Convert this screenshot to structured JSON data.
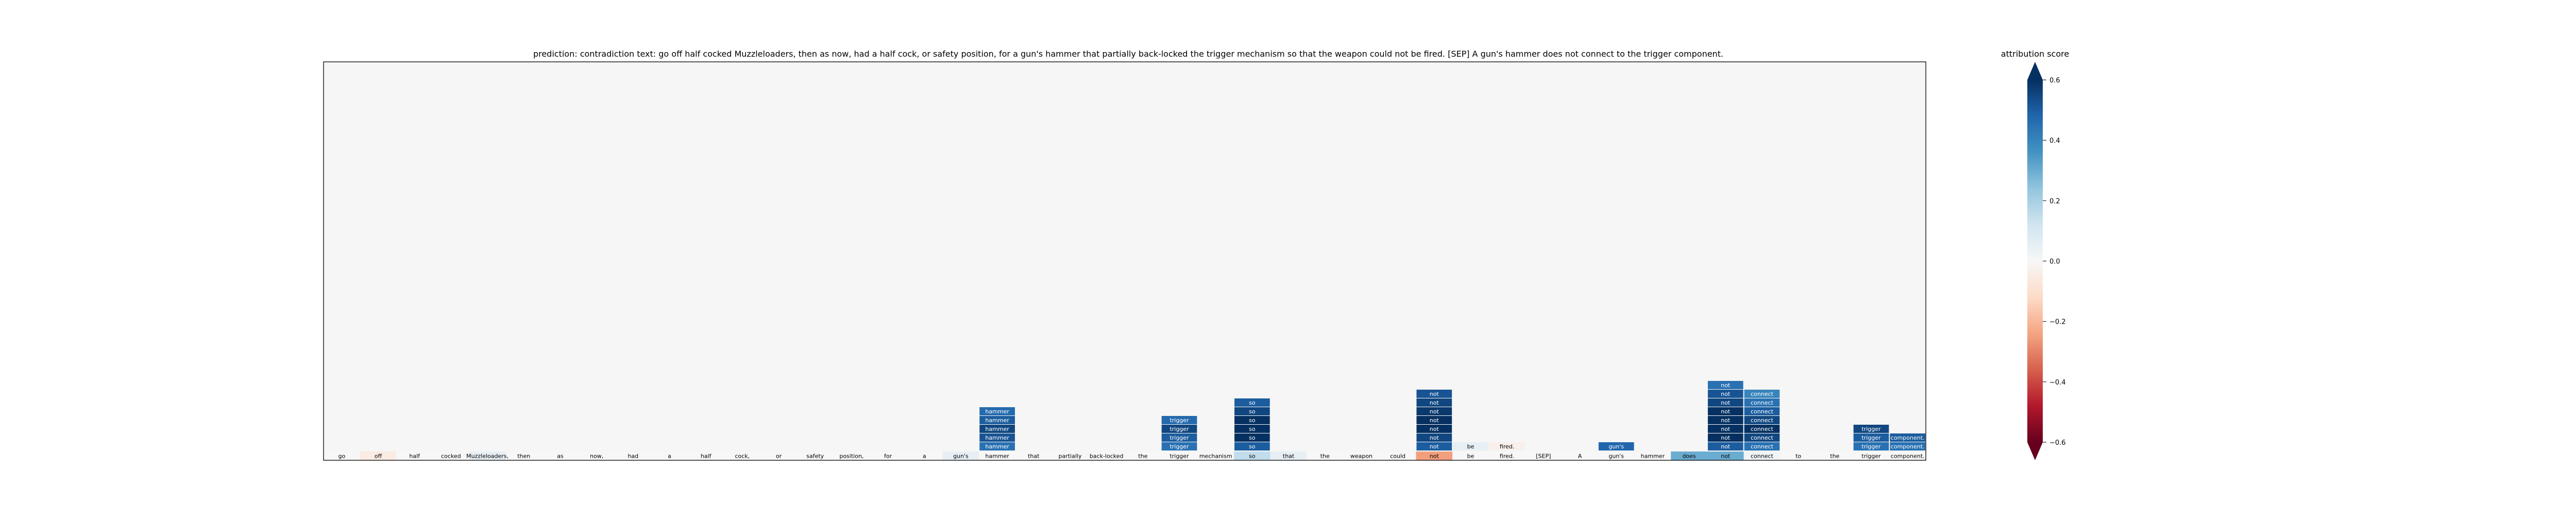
{
  "title": "prediction:  contradiction     text:  go off half cocked Muzzleloaders, then as now, had a half cock, or safety position, for a gun's hammer that partially back-locked the trigger mechanism so that the weapon could not be fired. [SEP] A gun's hammer does not connect to the trigger component.",
  "colorbar": {
    "title": "attribution score",
    "ticks": [
      "0.6",
      "0.4",
      "0.2",
      "0.0",
      "−0.2",
      "−0.4",
      "−0.6"
    ],
    "range": [
      -0.6,
      0.6
    ],
    "colormap": "RdBu"
  },
  "chart_data": {
    "type": "heatmap",
    "tokens": [
      "go",
      "off",
      "half",
      "cocked",
      "Muzzleloaders,",
      "then",
      "as",
      "now,",
      "had",
      "a",
      "half",
      "cock,",
      "or",
      "safety",
      "position,",
      "for",
      "a",
      "gun's",
      "hammer",
      "that",
      "partially",
      "back-locked",
      "the",
      "trigger",
      "mechanism",
      "so",
      "that",
      "the",
      "weapon",
      "could",
      "not",
      "be",
      "fired.",
      "[SEP]",
      "A",
      "gun's",
      "hammer",
      "does",
      "not",
      "connect",
      "to",
      "the",
      "trigger",
      "component."
    ],
    "bottom_row_scores": [
      0,
      -0.05,
      0,
      0,
      0.05,
      0,
      0,
      0,
      0,
      0,
      0,
      0,
      0,
      0,
      0,
      0,
      0,
      0.05,
      0,
      0,
      0,
      0,
      0,
      0,
      0,
      0.15,
      0.05,
      0,
      0,
      0,
      -0.25,
      0,
      0,
      0,
      0,
      0,
      0,
      0.3,
      0.3,
      0.02,
      0,
      0,
      0,
      0
    ],
    "stacks": [
      {
        "column": 18,
        "token": "hammer",
        "cells": [
          0.45,
          0.52,
          0.55,
          0.5,
          0.47
        ]
      },
      {
        "column": 23,
        "token": "trigger",
        "cells": [
          0.45,
          0.5,
          0.55,
          0.47
        ]
      },
      {
        "column": 25,
        "token": "so",
        "cells": [
          0.5,
          0.6,
          0.65,
          0.62,
          0.55,
          0.5
        ]
      },
      {
        "column": 30,
        "token": "not",
        "cells": [
          0.5,
          0.55,
          0.6,
          0.62,
          0.58,
          0.55,
          0.52
        ]
      },
      {
        "column": 31,
        "token": "be",
        "cells": [
          0.05
        ]
      },
      {
        "column": 32,
        "token": "fired.",
        "cells": [
          -0.03
        ]
      },
      {
        "column": 35,
        "token": "gun's",
        "cells": [
          0.48
        ]
      },
      {
        "column": 38,
        "token": "not",
        "cells": [
          0.5,
          0.6,
          0.66,
          0.65,
          0.6,
          0.55,
          0.52,
          0.45
        ]
      },
      {
        "column": 39,
        "token": "connect",
        "cells": [
          0.45,
          0.55,
          0.6,
          0.55,
          0.5,
          0.45,
          0.4
        ]
      },
      {
        "column": 42,
        "token": "trigger",
        "cells": [
          0.45,
          0.5,
          0.55
        ]
      },
      {
        "column": 43,
        "token": "component.",
        "cells": [
          0.45,
          0.5
        ]
      }
    ]
  }
}
